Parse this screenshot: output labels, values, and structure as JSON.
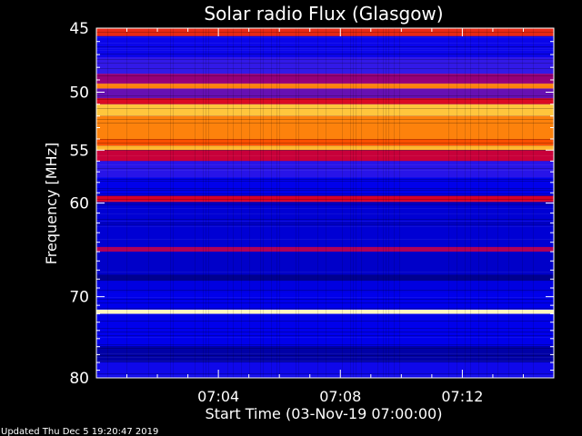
{
  "chart_data": {
    "type": "heatmap",
    "title": "Solar radio Flux (Glasgow)",
    "xlabel": "Start Time (03-Nov-19 07:00:00)",
    "ylabel_main": "Frequency ",
    "ylabel_unit": "[MHz]",
    "y_scale": "log",
    "ylim": [
      45,
      80
    ],
    "y_ticks": [
      45,
      50,
      55,
      60,
      70,
      80
    ],
    "y_tick_labels": [
      "45",
      "50",
      "55",
      "60",
      "70",
      "80"
    ],
    "x_ticks": [
      "07:04",
      "07:08",
      "07:12"
    ],
    "x_tick_minutes": [
      4,
      8,
      12
    ],
    "xlim_minutes": [
      0,
      15
    ],
    "colormap": "blue-red-yellow-white (heat)",
    "bands": [
      {
        "freq_from": 45.0,
        "freq_to": 45.6,
        "level": 0.55
      },
      {
        "freq_from": 45.6,
        "freq_to": 47.2,
        "level": 0.12
      },
      {
        "freq_from": 47.2,
        "freq_to": 48.5,
        "level": 0.2
      },
      {
        "freq_from": 48.5,
        "freq_to": 49.3,
        "level": 0.35
      },
      {
        "freq_from": 49.3,
        "freq_to": 49.7,
        "level": 0.72
      },
      {
        "freq_from": 49.7,
        "freq_to": 50.5,
        "level": 0.28
      },
      {
        "freq_from": 50.5,
        "freq_to": 51.0,
        "level": 0.5
      },
      {
        "freq_from": 51.0,
        "freq_to": 52.0,
        "level": 0.85
      },
      {
        "freq_from": 52.0,
        "freq_to": 54.0,
        "level": 0.72
      },
      {
        "freq_from": 54.0,
        "freq_to": 54.6,
        "level": 0.62
      },
      {
        "freq_from": 54.6,
        "freq_to": 55.0,
        "level": 0.82
      },
      {
        "freq_from": 55.0,
        "freq_to": 56.0,
        "level": 0.45
      },
      {
        "freq_from": 56.0,
        "freq_to": 57.5,
        "level": 0.18
      },
      {
        "freq_from": 57.5,
        "freq_to": 59.3,
        "level": 0.1
      },
      {
        "freq_from": 59.3,
        "freq_to": 59.9,
        "level": 0.48
      },
      {
        "freq_from": 59.9,
        "freq_to": 64.5,
        "level": 0.08
      },
      {
        "freq_from": 64.5,
        "freq_to": 65.0,
        "level": 0.4
      },
      {
        "freq_from": 65.0,
        "freq_to": 67.5,
        "level": 0.07
      },
      {
        "freq_from": 67.5,
        "freq_to": 68.2,
        "level": 0.02
      },
      {
        "freq_from": 68.2,
        "freq_to": 69.5,
        "level": 0.09
      },
      {
        "freq_from": 69.5,
        "freq_to": 71.5,
        "level": 0.1
      },
      {
        "freq_from": 71.5,
        "freq_to": 72.0,
        "level": 0.97
      },
      {
        "freq_from": 72.0,
        "freq_to": 76.0,
        "level": 0.1
      },
      {
        "freq_from": 76.0,
        "freq_to": 78.0,
        "level": 0.04
      },
      {
        "freq_from": 78.0,
        "freq_to": 80.0,
        "level": 0.13
      }
    ]
  },
  "footer": {
    "updated": "Updated Thu Dec  5 19:20:47 2019"
  },
  "colors": {
    "background": "#000000",
    "foreground": "#ffffff"
  }
}
